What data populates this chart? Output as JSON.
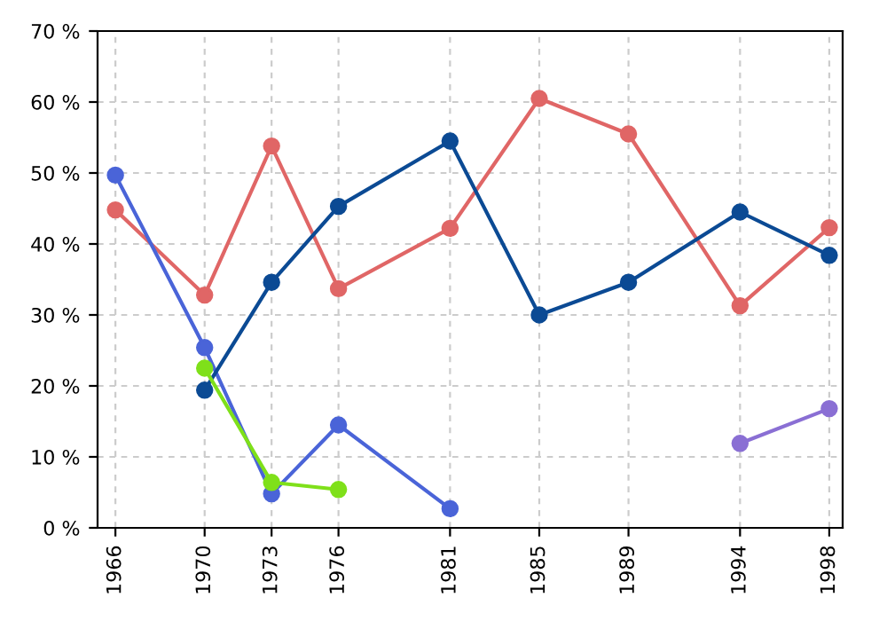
{
  "chart_data": {
    "type": "line",
    "marker": "circle",
    "grid": true,
    "xlim": [
      1965.2,
      1998.6
    ],
    "xticks": [
      1966,
      1970,
      1973,
      1976,
      1981,
      1985,
      1989,
      1994,
      1998
    ],
    "ylim": [
      0,
      70
    ],
    "yticks": [
      {
        "value": 0,
        "label": "0 %"
      },
      {
        "value": 10,
        "label": "10 %"
      },
      {
        "value": 20,
        "label": "20 %"
      },
      {
        "value": 30,
        "label": "30 %"
      },
      {
        "value": 40,
        "label": "40 %"
      },
      {
        "value": 50,
        "label": "50 %"
      },
      {
        "value": 60,
        "label": "60 %"
      },
      {
        "value": 70,
        "label": "70 %"
      }
    ],
    "series": [
      {
        "color": "#e06666",
        "x": [
          1966,
          1970,
          1973,
          1976,
          1981,
          1985,
          1989,
          1994,
          1998
        ],
        "values": [
          44.8,
          32.8,
          53.8,
          33.7,
          42.2,
          60.5,
          55.5,
          31.3,
          42.3
        ]
      },
      {
        "color": "#4a64d8",
        "x": [
          1966,
          1970,
          1973,
          1976,
          1981
        ],
        "values": [
          49.7,
          25.4,
          4.8,
          14.5,
          2.7
        ]
      },
      {
        "color": "#0b4a94",
        "x": [
          1970,
          1973,
          1976,
          1981,
          1985,
          1989,
          1994,
          1998
        ],
        "values": [
          19.4,
          34.6,
          45.3,
          54.5,
          30.0,
          34.6,
          44.5,
          38.4
        ]
      },
      {
        "color": "#7fe01a",
        "x": [
          1970,
          1973,
          1976
        ],
        "values": [
          22.5,
          6.4,
          5.4
        ]
      },
      {
        "color": "#8a6fd4",
        "x": [
          1994,
          1998
        ],
        "values": [
          11.9,
          16.8
        ]
      }
    ]
  }
}
